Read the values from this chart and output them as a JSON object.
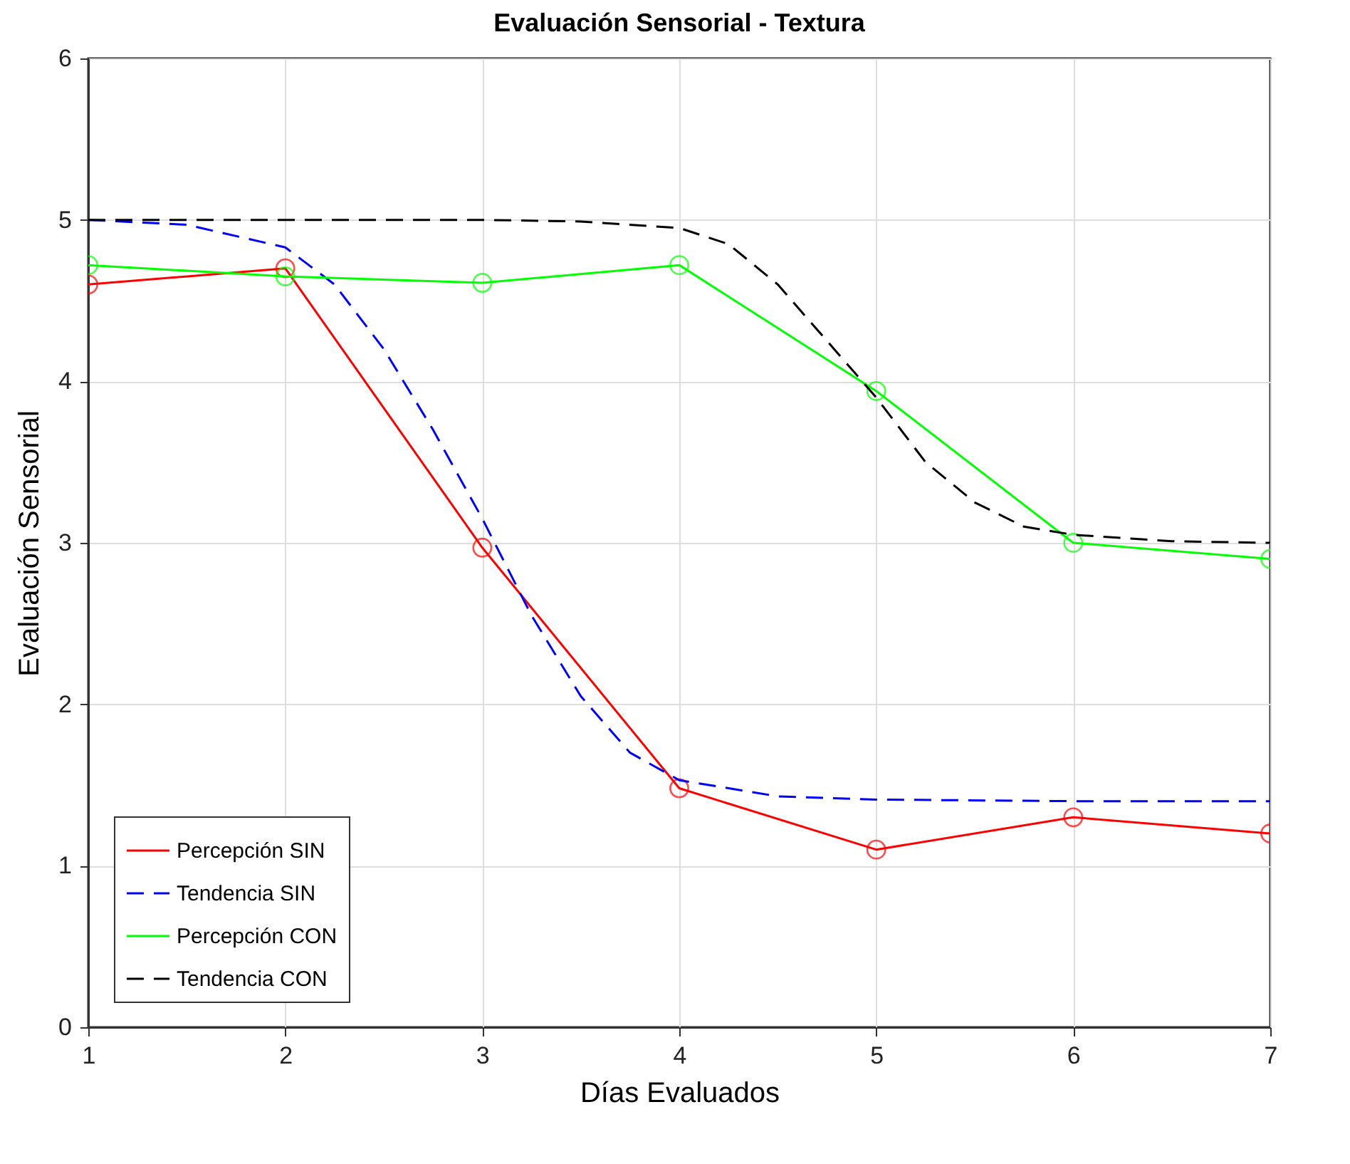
{
  "chart_data": {
    "type": "line",
    "title": "Evaluación Sensorial - Textura",
    "xlabel": "Días Evaluados",
    "ylabel": "Evaluación Sensorial",
    "xlim": [
      1,
      7
    ],
    "xticks": [
      1,
      2,
      3,
      4,
      5,
      6,
      7
    ],
    "ylim": [
      0,
      6
    ],
    "yticks": [
      0,
      1,
      2,
      3,
      4,
      5,
      6
    ],
    "grid": true,
    "legend": "bottom left",
    "series": [
      {
        "name": "Percepción SIN",
        "color": "#ff0000",
        "marker": "circle",
        "line_style": "solid",
        "x": [
          1,
          2,
          3,
          4,
          5,
          6,
          7
        ],
        "values": [
          4.6,
          4.7,
          2.97,
          1.48,
          1.1,
          1.3,
          1.2
        ]
      },
      {
        "name": "Tendencia SIN",
        "color": "#0000ff",
        "marker": "none",
        "line_style": "dashed",
        "x": [
          1,
          1.5,
          2,
          2.25,
          2.5,
          2.75,
          3,
          3.25,
          3.5,
          3.75,
          4,
          4.5,
          5,
          6,
          7
        ],
        "values": [
          5.0,
          4.97,
          4.83,
          4.6,
          4.2,
          3.7,
          3.15,
          2.55,
          2.05,
          1.7,
          1.53,
          1.43,
          1.41,
          1.4,
          1.4
        ]
      },
      {
        "name": "Percepción CON",
        "color": "#00ff00",
        "marker": "circle",
        "line_style": "solid",
        "x": [
          1,
          2,
          3,
          4,
          5,
          6,
          7
        ],
        "values": [
          4.72,
          4.65,
          4.61,
          4.72,
          3.94,
          3.0,
          2.9
        ]
      },
      {
        "name": "Tendencia CON",
        "color": "#000000",
        "marker": "none",
        "line_style": "dashed",
        "x": [
          1,
          3,
          3.5,
          4,
          4.25,
          4.5,
          4.75,
          5,
          5.25,
          5.5,
          5.75,
          6,
          6.5,
          7
        ],
        "values": [
          5.0,
          5.0,
          4.99,
          4.95,
          4.85,
          4.6,
          4.25,
          3.9,
          3.5,
          3.25,
          3.1,
          3.05,
          3.01,
          3.0
        ]
      }
    ]
  }
}
